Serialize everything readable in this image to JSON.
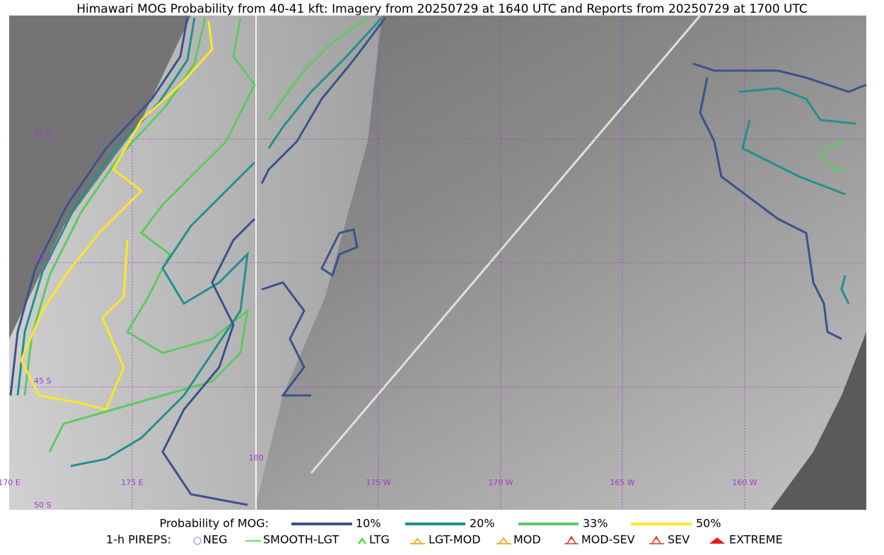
{
  "title": "Himawari MOG Probability from 40-41 kft: Imagery from 20250729 at 1640 UTC and Reports from 20250729 at 1700 UTC",
  "grid_labels": {
    "lat": [
      "35 S",
      "40 S",
      "45 S",
      "50 S"
    ],
    "lon": [
      "170 E",
      "175 E",
      "180",
      "175 W",
      "170 W",
      "165 W",
      "160 W"
    ]
  },
  "legend": {
    "probability": {
      "label": "Probability of MOG:",
      "items": [
        "10%",
        "20%",
        "33%",
        "50%"
      ]
    },
    "pireps": {
      "label": "1-h PIREPS:",
      "items": [
        "NEG",
        "SMOOTH-LGT",
        "LTG",
        "LGT-MOD",
        "MOD",
        "MOD-SEV",
        "SEV",
        "EXTREME"
      ]
    }
  }
}
